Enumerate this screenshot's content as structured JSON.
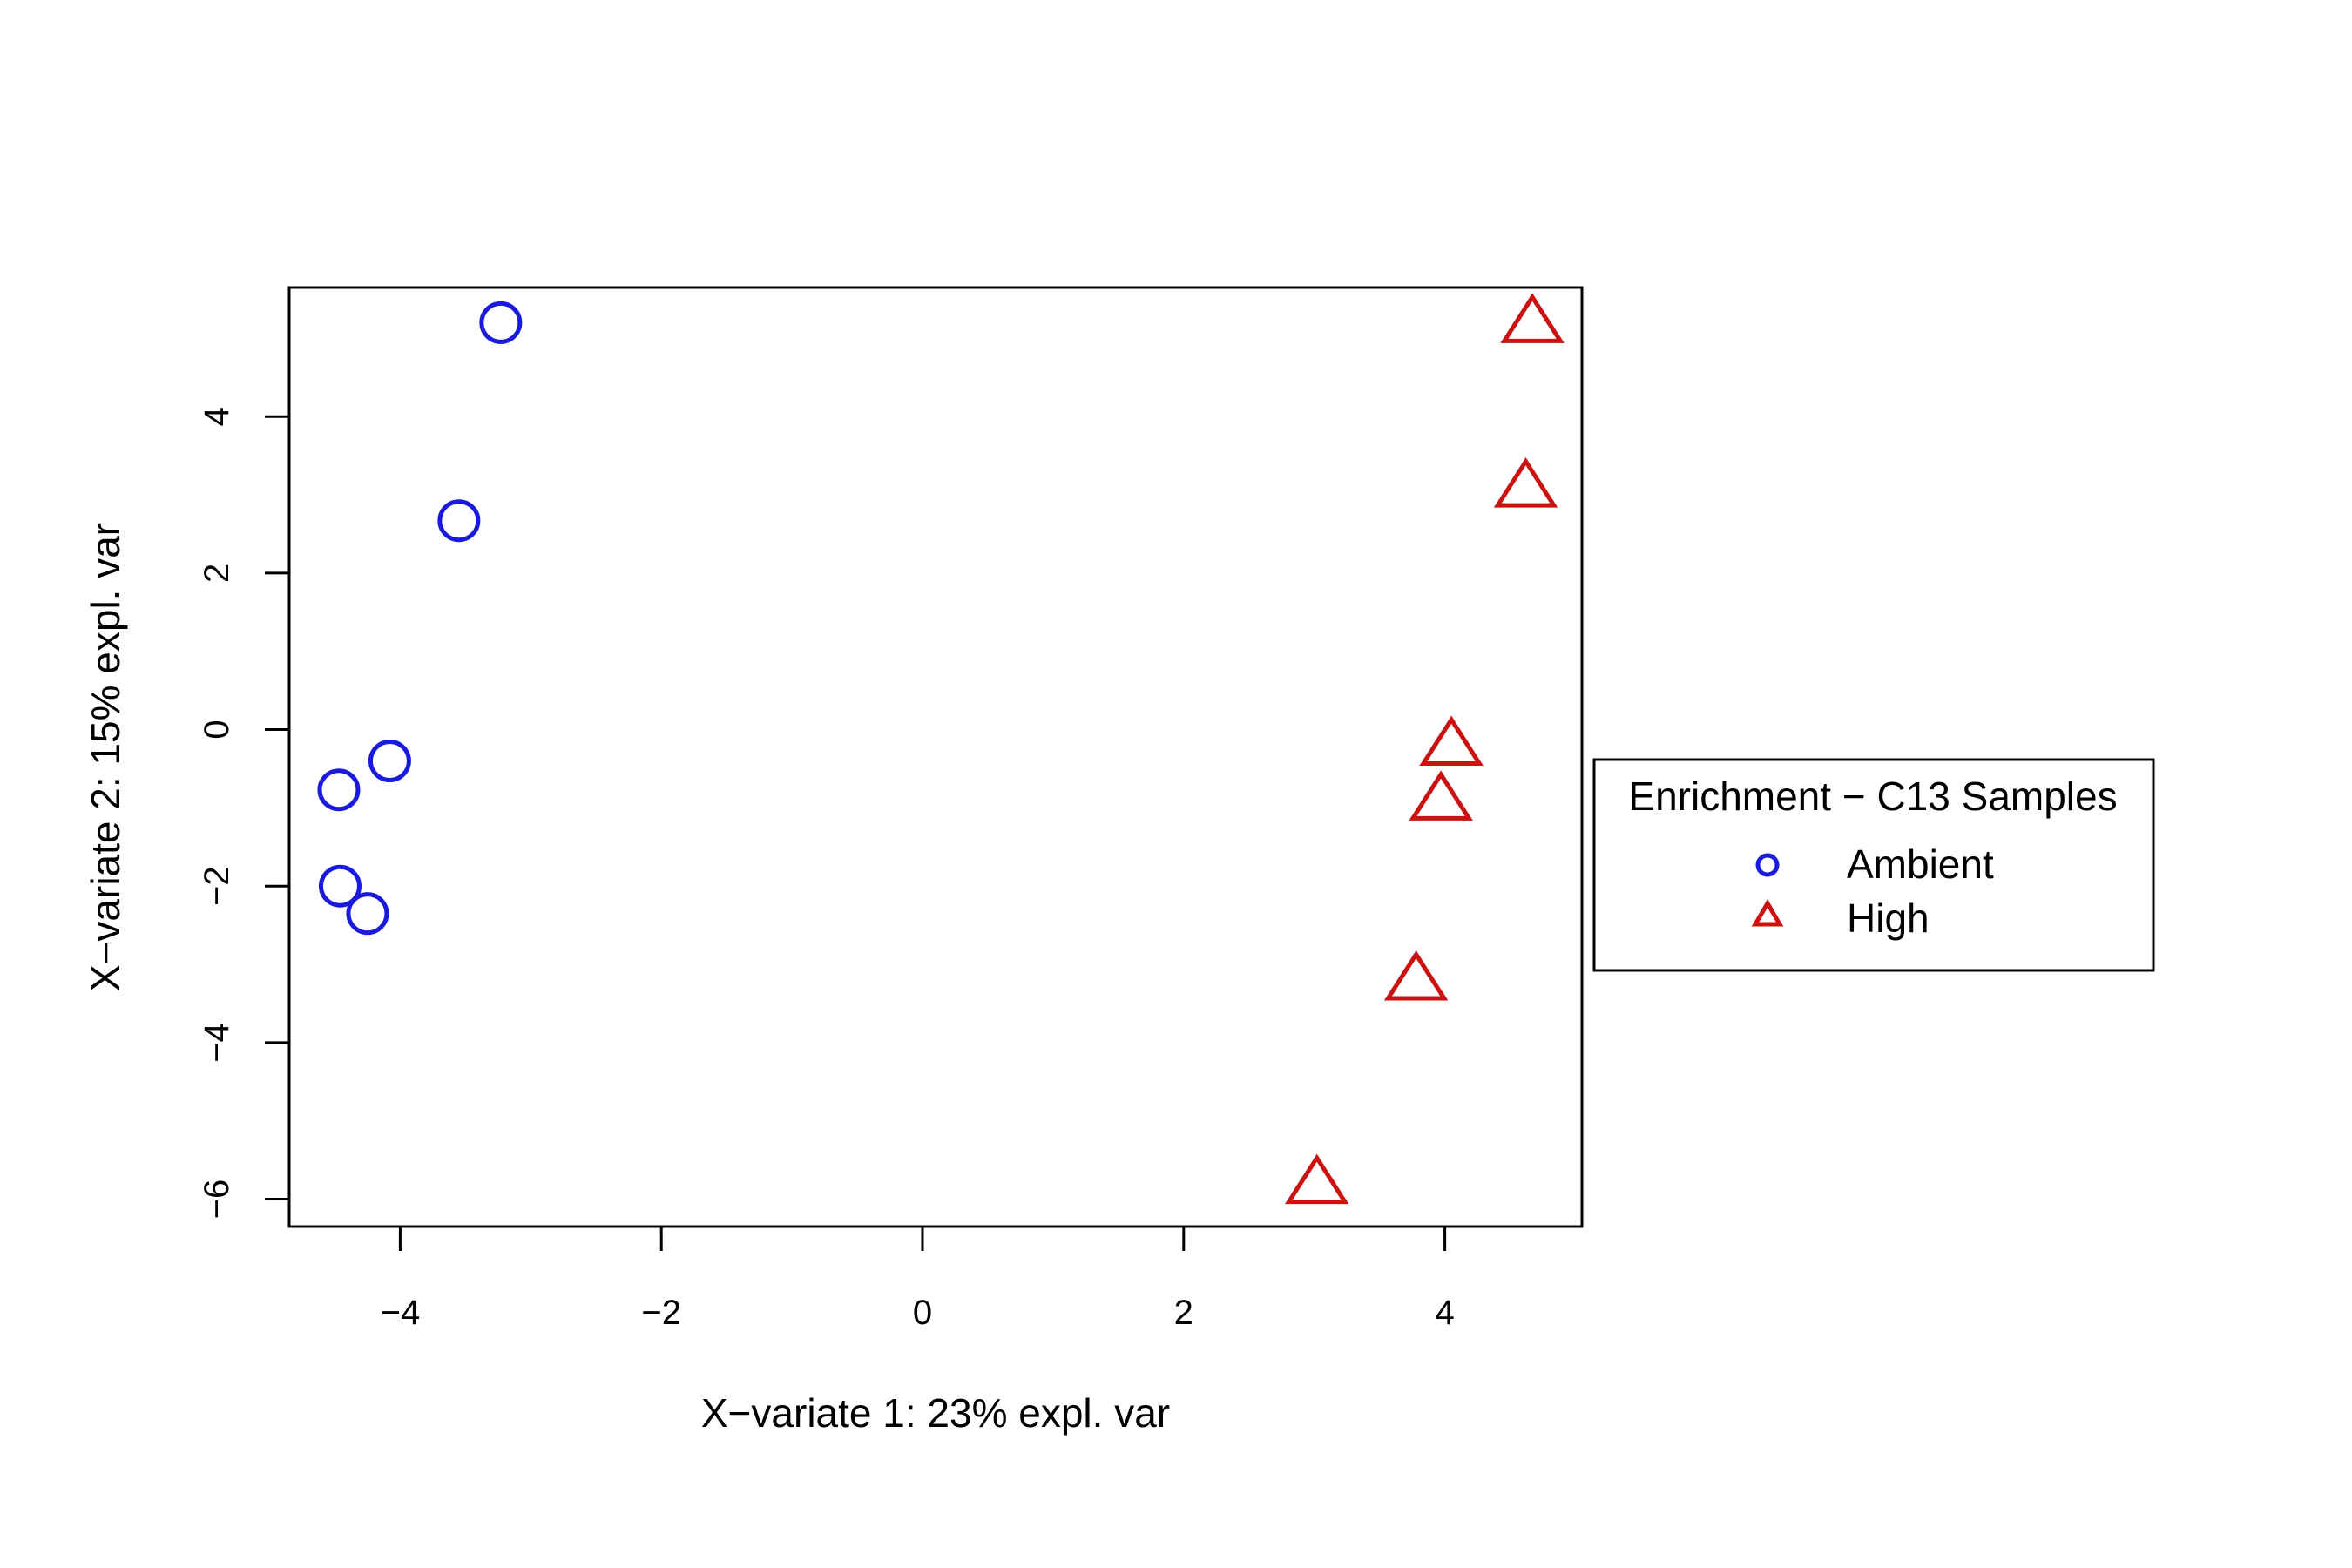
{
  "chart_data": {
    "type": "scatter",
    "xlabel": "X−variate 1: 23% expl. var",
    "ylabel": "X−variate 2: 15% expl. var",
    "xlim": [
      -4.85,
      5.05
    ],
    "ylim": [
      -6.35,
      5.65
    ],
    "xticks": [
      -4,
      -2,
      0,
      2,
      4
    ],
    "yticks": [
      -6,
      -4,
      -2,
      0,
      2,
      4
    ],
    "xtick_labels": [
      "−4",
      "−2",
      "0",
      "2",
      "4"
    ],
    "ytick_labels": [
      "−6",
      "−4",
      "−2",
      "0",
      "2",
      "4"
    ],
    "grid": false,
    "legend": {
      "title": "Enrichment − C13 Samples",
      "placement": "right",
      "entries": [
        "Ambient",
        "High"
      ]
    },
    "series": [
      {
        "name": "Ambient",
        "marker": "circle",
        "color": "#1a1adf",
        "points": [
          {
            "x": -3.23,
            "y": 5.2
          },
          {
            "x": -3.55,
            "y": 2.67
          },
          {
            "x": -4.08,
            "y": -0.4
          },
          {
            "x": -4.47,
            "y": -0.77
          },
          {
            "x": -4.46,
            "y": -2.0
          },
          {
            "x": -4.25,
            "y": -2.35
          }
        ]
      },
      {
        "name": "High",
        "marker": "triangle",
        "color": "#cc1111",
        "points": [
          {
            "x": 4.67,
            "y": 5.2
          },
          {
            "x": 4.62,
            "y": 3.1
          },
          {
            "x": 4.05,
            "y": -0.2
          },
          {
            "x": 3.97,
            "y": -0.9
          },
          {
            "x": 3.78,
            "y": -3.2
          },
          {
            "x": 3.02,
            "y": -5.8
          }
        ]
      }
    ]
  }
}
